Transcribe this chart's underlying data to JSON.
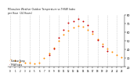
{
  "title": "Milwaukee Weather Outdoor Temperature vs THSW Index\nper Hour  (24 Hours)",
  "hours": [
    0,
    1,
    2,
    3,
    4,
    5,
    6,
    7,
    8,
    9,
    10,
    11,
    12,
    13,
    14,
    15,
    16,
    17,
    18,
    19,
    20,
    21,
    22,
    23
  ],
  "temp": [
    28,
    27,
    26,
    25,
    25,
    24,
    25,
    30,
    36,
    42,
    50,
    57,
    62,
    65,
    67,
    66,
    63,
    58,
    52,
    46,
    41,
    37,
    34,
    31
  ],
  "thsw": [
    null,
    null,
    null,
    null,
    null,
    null,
    null,
    null,
    34,
    41,
    54,
    63,
    71,
    73,
    75,
    73,
    68,
    61,
    51,
    44,
    38,
    null,
    null,
    null
  ],
  "temp_color": "#FF8C00",
  "thsw_color": "#CC0000",
  "legend_temp": "Outdoor Temp",
  "legend_thsw": "THSW Index",
  "ylim": [
    20,
    80
  ],
  "ytick_values": [
    20,
    30,
    40,
    50,
    60,
    70,
    80
  ],
  "ytick_labels": [
    "20",
    "30",
    "40",
    "50",
    "60",
    "70",
    "80"
  ],
  "grid_hours": [
    0,
    2,
    4,
    6,
    8,
    10,
    12,
    14,
    16,
    18,
    20,
    22
  ],
  "grid_color": "#BBBBBB",
  "bg_color": "#FFFFFF"
}
